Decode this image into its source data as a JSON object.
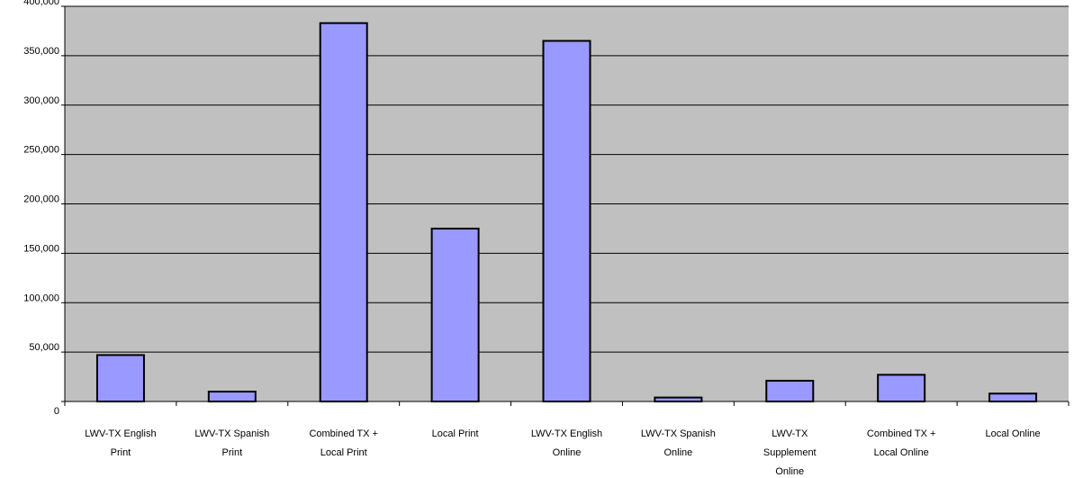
{
  "chart_data": {
    "type": "bar",
    "title": "",
    "xlabel": "",
    "ylabel": "",
    "ylim": [
      0,
      400000
    ],
    "y_ticks": [
      "0",
      "50,000",
      "100,000",
      "150,000",
      "200,000",
      "250,000",
      "300,000",
      "350,000",
      "400,000"
    ],
    "categories": [
      [
        "LWV-TX English",
        "Print"
      ],
      [
        "LWV-TX Spanish",
        "Print"
      ],
      [
        "Combined TX +",
        "Local Print"
      ],
      [
        "Local Print"
      ],
      [
        "LWV-TX English",
        "Online"
      ],
      [
        "LWV-TX Spanish",
        "Online"
      ],
      [
        "LWV-TX",
        "Supplement",
        "Online"
      ],
      [
        "Combined TX +",
        "Local Online"
      ],
      [
        "Local Online"
      ]
    ],
    "values": [
      47000,
      10000,
      383000,
      175000,
      365000,
      4000,
      21000,
      27000,
      8000
    ],
    "grid": true,
    "legend": "none",
    "colors": {
      "bar_fill": "#9999ff",
      "bar_stroke": "#000000",
      "plot_bg": "#c0c0c0",
      "gridline": "#000000"
    }
  }
}
